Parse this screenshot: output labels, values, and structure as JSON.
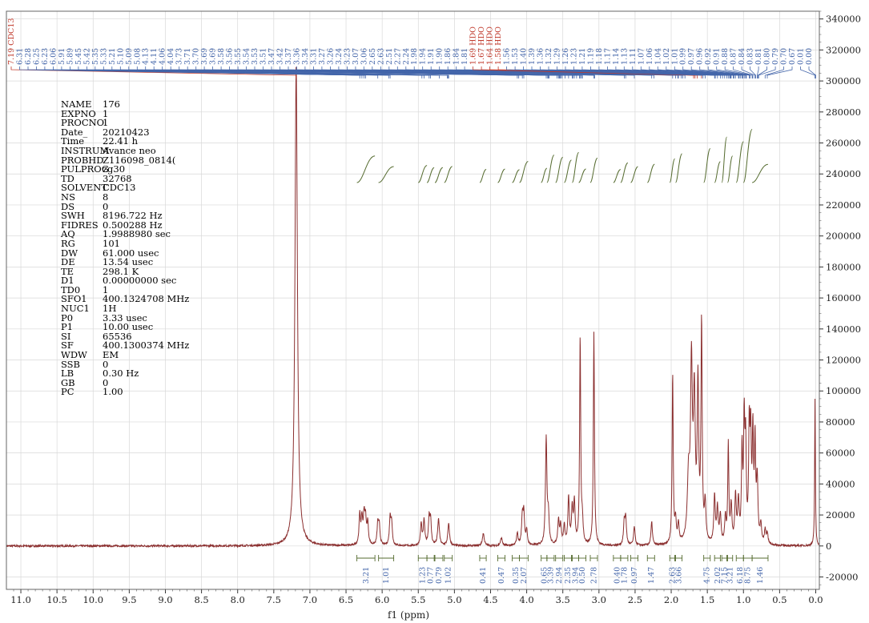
{
  "chart_data": {
    "type": "line",
    "xlabel": "f1 (ppm)",
    "xlim": [
      11.2,
      -0.05
    ],
    "ylim": [
      -28000,
      345000
    ],
    "x_ticks": [
      11.0,
      10.5,
      10.0,
      9.5,
      9.0,
      8.5,
      8.0,
      7.5,
      7.0,
      6.5,
      6.0,
      5.5,
      5.0,
      4.5,
      4.0,
      3.5,
      3.0,
      2.5,
      2.0,
      1.5,
      1.0,
      0.5,
      0.0
    ],
    "x_tick_labels": [
      "11.0",
      "10.5",
      "10.0",
      "9.5",
      "9.0",
      "8.5",
      "8.0",
      "7.5",
      "7.0",
      "6.5",
      "6.0",
      "5.5",
      "5.0",
      "4.5",
      "4.0",
      "3.5",
      "3.0",
      "2.5",
      "2.0",
      "1.5",
      "1.0",
      "0.5",
      "0.0"
    ],
    "y_ticks": [
      -20000,
      0,
      20000,
      40000,
      60000,
      80000,
      100000,
      120000,
      140000,
      160000,
      180000,
      200000,
      220000,
      240000,
      260000,
      280000,
      300000,
      320000,
      340000
    ],
    "y_tick_labels": [
      "-20000",
      "0",
      "20000",
      "40000",
      "60000",
      "80000",
      "100000",
      "120000",
      "140000",
      "160000",
      "180000",
      "200000",
      "220000",
      "240000",
      "260000",
      "280000",
      "300000",
      "320000",
      "340000"
    ],
    "grid": true,
    "series_color": "#8b2f2f",
    "peak_tick_color": "#4466aa",
    "integral_color": "#556b2f",
    "peaks": [
      [
        7.19,
        310000,
        0.02
      ],
      [
        6.31,
        19000,
        0.012
      ],
      [
        6.28,
        16000,
        0.012
      ],
      [
        6.25,
        18000,
        0.012
      ],
      [
        6.23,
        15000,
        0.012
      ],
      [
        6.2,
        14000,
        0.012
      ],
      [
        6.06,
        14000,
        0.012
      ],
      [
        6.04,
        12000,
        0.012
      ],
      [
        5.89,
        17000,
        0.012
      ],
      [
        5.87,
        14000,
        0.012
      ],
      [
        5.46,
        14000,
        0.012
      ],
      [
        5.42,
        16000,
        0.012
      ],
      [
        5.35,
        17000,
        0.012
      ],
      [
        5.33,
        15000,
        0.012
      ],
      [
        5.22,
        17000,
        0.014
      ],
      [
        5.08,
        14000,
        0.014
      ],
      [
        4.6,
        8000,
        0.015
      ],
      [
        4.35,
        5000,
        0.015
      ],
      [
        4.13,
        8000,
        0.012
      ],
      [
        4.06,
        18000,
        0.012
      ],
      [
        4.04,
        20000,
        0.012
      ],
      [
        4.0,
        9000,
        0.012
      ],
      [
        3.73,
        69000,
        0.012
      ],
      [
        3.7,
        18000,
        0.012
      ],
      [
        3.56,
        16000,
        0.012
      ],
      [
        3.53,
        12000,
        0.012
      ],
      [
        3.48,
        12000,
        0.012
      ],
      [
        3.42,
        30000,
        0.012
      ],
      [
        3.37,
        22000,
        0.012
      ],
      [
        3.34,
        26000,
        0.012
      ],
      [
        3.26,
        133000,
        0.009
      ],
      [
        3.23,
        14000,
        0.012
      ],
      [
        3.07,
        138000,
        0.009
      ],
      [
        2.65,
        14000,
        0.012
      ],
      [
        2.63,
        17000,
        0.012
      ],
      [
        2.51,
        12000,
        0.012
      ],
      [
        2.27,
        15000,
        0.012
      ],
      [
        1.98,
        110000,
        0.009
      ],
      [
        1.94,
        14000,
        0.012
      ],
      [
        1.9,
        12000,
        0.012
      ],
      [
        1.76,
        40000,
        0.02
      ],
      [
        1.72,
        110000,
        0.015
      ],
      [
        1.68,
        90000,
        0.015
      ],
      [
        1.63,
        100000,
        0.012
      ],
      [
        1.58,
        140000,
        0.01
      ],
      [
        1.53,
        24000,
        0.012
      ],
      [
        1.4,
        30000,
        0.012
      ],
      [
        1.36,
        22000,
        0.012
      ],
      [
        1.32,
        18000,
        0.012
      ],
      [
        1.25,
        16000,
        0.012
      ],
      [
        1.21,
        63000,
        0.009
      ],
      [
        1.17,
        24000,
        0.012
      ],
      [
        1.11,
        30000,
        0.012
      ],
      [
        1.07,
        26000,
        0.012
      ],
      [
        1.02,
        58000,
        0.01
      ],
      [
        0.99,
        74000,
        0.01
      ],
      [
        0.97,
        60000,
        0.01
      ],
      [
        0.92,
        70000,
        0.01
      ],
      [
        0.9,
        64000,
        0.01
      ],
      [
        0.87,
        68000,
        0.01
      ],
      [
        0.84,
        62000,
        0.01
      ],
      [
        0.81,
        40000,
        0.012
      ],
      [
        0.76,
        12000,
        0.012
      ],
      [
        0.7,
        9000,
        0.012
      ],
      [
        0.67,
        7000,
        0.012
      ],
      [
        0.01,
        95000,
        0.006
      ]
    ],
    "peak_labels": [
      {
        "text": "7.19 CDC13",
        "red": true
      },
      {
        "text": "6.31"
      },
      {
        "text": "6.28"
      },
      {
        "text": "6.25"
      },
      {
        "text": "6.23"
      },
      {
        "text": "6.06"
      },
      {
        "text": "5.91"
      },
      {
        "text": "5.89"
      },
      {
        "text": "5.45"
      },
      {
        "text": "5.42"
      },
      {
        "text": "5.35"
      },
      {
        "text": "5.33"
      },
      {
        "text": "5.21"
      },
      {
        "text": "5.10"
      },
      {
        "text": "5.09"
      },
      {
        "text": "5.08"
      },
      {
        "text": "4.13"
      },
      {
        "text": "4.11"
      },
      {
        "text": "4.06"
      },
      {
        "text": "4.04"
      },
      {
        "text": "3.73"
      },
      {
        "text": "3.71"
      },
      {
        "text": "3.70"
      },
      {
        "text": "3.69"
      },
      {
        "text": "3.69"
      },
      {
        "text": "3.58"
      },
      {
        "text": "3.56"
      },
      {
        "text": "3.55"
      },
      {
        "text": "3.54"
      },
      {
        "text": "3.53"
      },
      {
        "text": "3.51"
      },
      {
        "text": "3.47"
      },
      {
        "text": "3.42"
      },
      {
        "text": "3.37"
      },
      {
        "text": "3.36"
      },
      {
        "text": "3.34"
      },
      {
        "text": "3.31"
      },
      {
        "text": "3.27"
      },
      {
        "text": "3.26"
      },
      {
        "text": "3.24"
      },
      {
        "text": "3.23"
      },
      {
        "text": "3.07"
      },
      {
        "text": "3.06"
      },
      {
        "text": "2.65"
      },
      {
        "text": "2.63"
      },
      {
        "text": "2.51"
      },
      {
        "text": "2.27"
      },
      {
        "text": "2.24"
      },
      {
        "text": "1.98"
      },
      {
        "text": "1.94"
      },
      {
        "text": "1.91"
      },
      {
        "text": "1.90"
      },
      {
        "text": "1.86"
      },
      {
        "text": "1.84"
      },
      {
        "text": "1.81"
      },
      {
        "text": "1.69 HDO",
        "red": true
      },
      {
        "text": "1.67 HDO",
        "red": true
      },
      {
        "text": "1.64 HDO",
        "red": true
      },
      {
        "text": "1.58 HDO",
        "red": true
      },
      {
        "text": "1.56"
      },
      {
        "text": "1.53"
      },
      {
        "text": "1.40"
      },
      {
        "text": "1.39"
      },
      {
        "text": "1.36"
      },
      {
        "text": "1.32"
      },
      {
        "text": "1.29"
      },
      {
        "text": "1.26"
      },
      {
        "text": "1.23"
      },
      {
        "text": "1.21"
      },
      {
        "text": "1.19"
      },
      {
        "text": "1.18"
      },
      {
        "text": "1.17"
      },
      {
        "text": "1.14"
      },
      {
        "text": "1.13"
      },
      {
        "text": "1.11"
      },
      {
        "text": "1.07"
      },
      {
        "text": "1.06"
      },
      {
        "text": "1.04"
      },
      {
        "text": "1.02"
      },
      {
        "text": "1.01"
      },
      {
        "text": "0.99"
      },
      {
        "text": "0.97"
      },
      {
        "text": "0.96"
      },
      {
        "text": "0.92"
      },
      {
        "text": "0.91"
      },
      {
        "text": "0.88"
      },
      {
        "text": "0.87"
      },
      {
        "text": "0.84"
      },
      {
        "text": "0.83"
      },
      {
        "text": "0.81"
      },
      {
        "text": "0.80"
      },
      {
        "text": "0.79"
      },
      {
        "text": "0.70"
      },
      {
        "text": "0.67"
      },
      {
        "text": "0.01"
      },
      {
        "text": "0.00"
      }
    ],
    "integrals": [
      {
        "from": 6.35,
        "to": 6.1,
        "value": "3.21"
      },
      {
        "from": 6.05,
        "to": 5.84,
        "value": "1.01"
      },
      {
        "from": 5.5,
        "to": 5.38,
        "value": "1.23"
      },
      {
        "from": 5.38,
        "to": 5.28,
        "value": "0.77"
      },
      {
        "from": 5.27,
        "to": 5.16,
        "value": "0.79"
      },
      {
        "from": 5.14,
        "to": 5.03,
        "value": "1.02"
      },
      {
        "from": 4.65,
        "to": 4.56,
        "value": "0.41"
      },
      {
        "from": 4.4,
        "to": 4.3,
        "value": "0.47"
      },
      {
        "from": 4.2,
        "to": 4.1,
        "value": "0.35"
      },
      {
        "from": 4.1,
        "to": 3.98,
        "value": "2.07"
      },
      {
        "from": 3.8,
        "to": 3.72,
        "value": "0.65"
      },
      {
        "from": 3.72,
        "to": 3.62,
        "value": "3.39"
      },
      {
        "from": 3.6,
        "to": 3.5,
        "value": "2.94"
      },
      {
        "from": 3.48,
        "to": 3.38,
        "value": "2.35"
      },
      {
        "from": 3.37,
        "to": 3.28,
        "value": "3.94"
      },
      {
        "from": 3.28,
        "to": 3.18,
        "value": "0.50"
      },
      {
        "from": 3.12,
        "to": 3.02,
        "value": "2.78"
      },
      {
        "from": 2.8,
        "to": 2.7,
        "value": "0.40"
      },
      {
        "from": 2.7,
        "to": 2.6,
        "value": "1.78"
      },
      {
        "from": 2.56,
        "to": 2.46,
        "value": "0.97"
      },
      {
        "from": 2.33,
        "to": 2.23,
        "value": "1.47"
      },
      {
        "from": 2.02,
        "to": 1.95,
        "value": "2.63"
      },
      {
        "from": 1.94,
        "to": 1.85,
        "value": "3.66"
      },
      {
        "from": 1.55,
        "to": 1.46,
        "value": "4.75"
      },
      {
        "from": 1.4,
        "to": 1.32,
        "value": "2.02"
      },
      {
        "from": 1.3,
        "to": 1.23,
        "value": "7.15"
      },
      {
        "from": 1.22,
        "to": 1.15,
        "value": "3.21"
      },
      {
        "from": 1.1,
        "to": 1.0,
        "value": "6.18"
      },
      {
        "from": 1.0,
        "to": 0.88,
        "value": "8.75"
      },
      {
        "from": 0.88,
        "to": 0.66,
        "value": "1.46"
      }
    ]
  },
  "acquisition_parameters": [
    {
      "key": "NAME",
      "value": "176"
    },
    {
      "key": "EXPNO",
      "value": "1"
    },
    {
      "key": "PROCNO",
      "value": "1"
    },
    {
      "key": "Date_",
      "value": "20210423"
    },
    {
      "key": "Time",
      "value": "22.41 h"
    },
    {
      "key": "INSTRUM",
      "value": "Avance neo"
    },
    {
      "key": "PROBHD",
      "value": "Z116098_0814("
    },
    {
      "key": "PULPROG",
      "value": "zg30"
    },
    {
      "key": "TD",
      "value": "32768"
    },
    {
      "key": "SOLVENT",
      "value": "CDC13"
    },
    {
      "key": "NS",
      "value": "8"
    },
    {
      "key": "DS",
      "value": "0"
    },
    {
      "key": "SWH",
      "value": "8196.722 Hz"
    },
    {
      "key": "FIDRES",
      "value": "0.500288 Hz"
    },
    {
      "key": "AQ",
      "value": "1.9988980 sec"
    },
    {
      "key": "RG",
      "value": "101"
    },
    {
      "key": "DW",
      "value": "61.000 usec"
    },
    {
      "key": "DE",
      "value": "13.54 usec"
    },
    {
      "key": "TE",
      "value": "298.1 K"
    },
    {
      "key": "D1",
      "value": "0.00000000 sec"
    },
    {
      "key": "TD0",
      "value": "1"
    },
    {
      "key": "SFO1",
      "value": "400.1324708 MHz"
    },
    {
      "key": "NUC1",
      "value": "1H"
    },
    {
      "key": "P0",
      "value": "3.33 usec"
    },
    {
      "key": "P1",
      "value": "10.00 usec"
    },
    {
      "key": "SI",
      "value": "65536"
    },
    {
      "key": "SF",
      "value": "400.1300374 MHz"
    },
    {
      "key": "WDW",
      "value": "EM"
    },
    {
      "key": "SSB",
      "value": "0"
    },
    {
      "key": "LB",
      "value": "0.30 Hz"
    },
    {
      "key": "GB",
      "value": "0"
    },
    {
      "key": "PC",
      "value": "1.00"
    }
  ]
}
